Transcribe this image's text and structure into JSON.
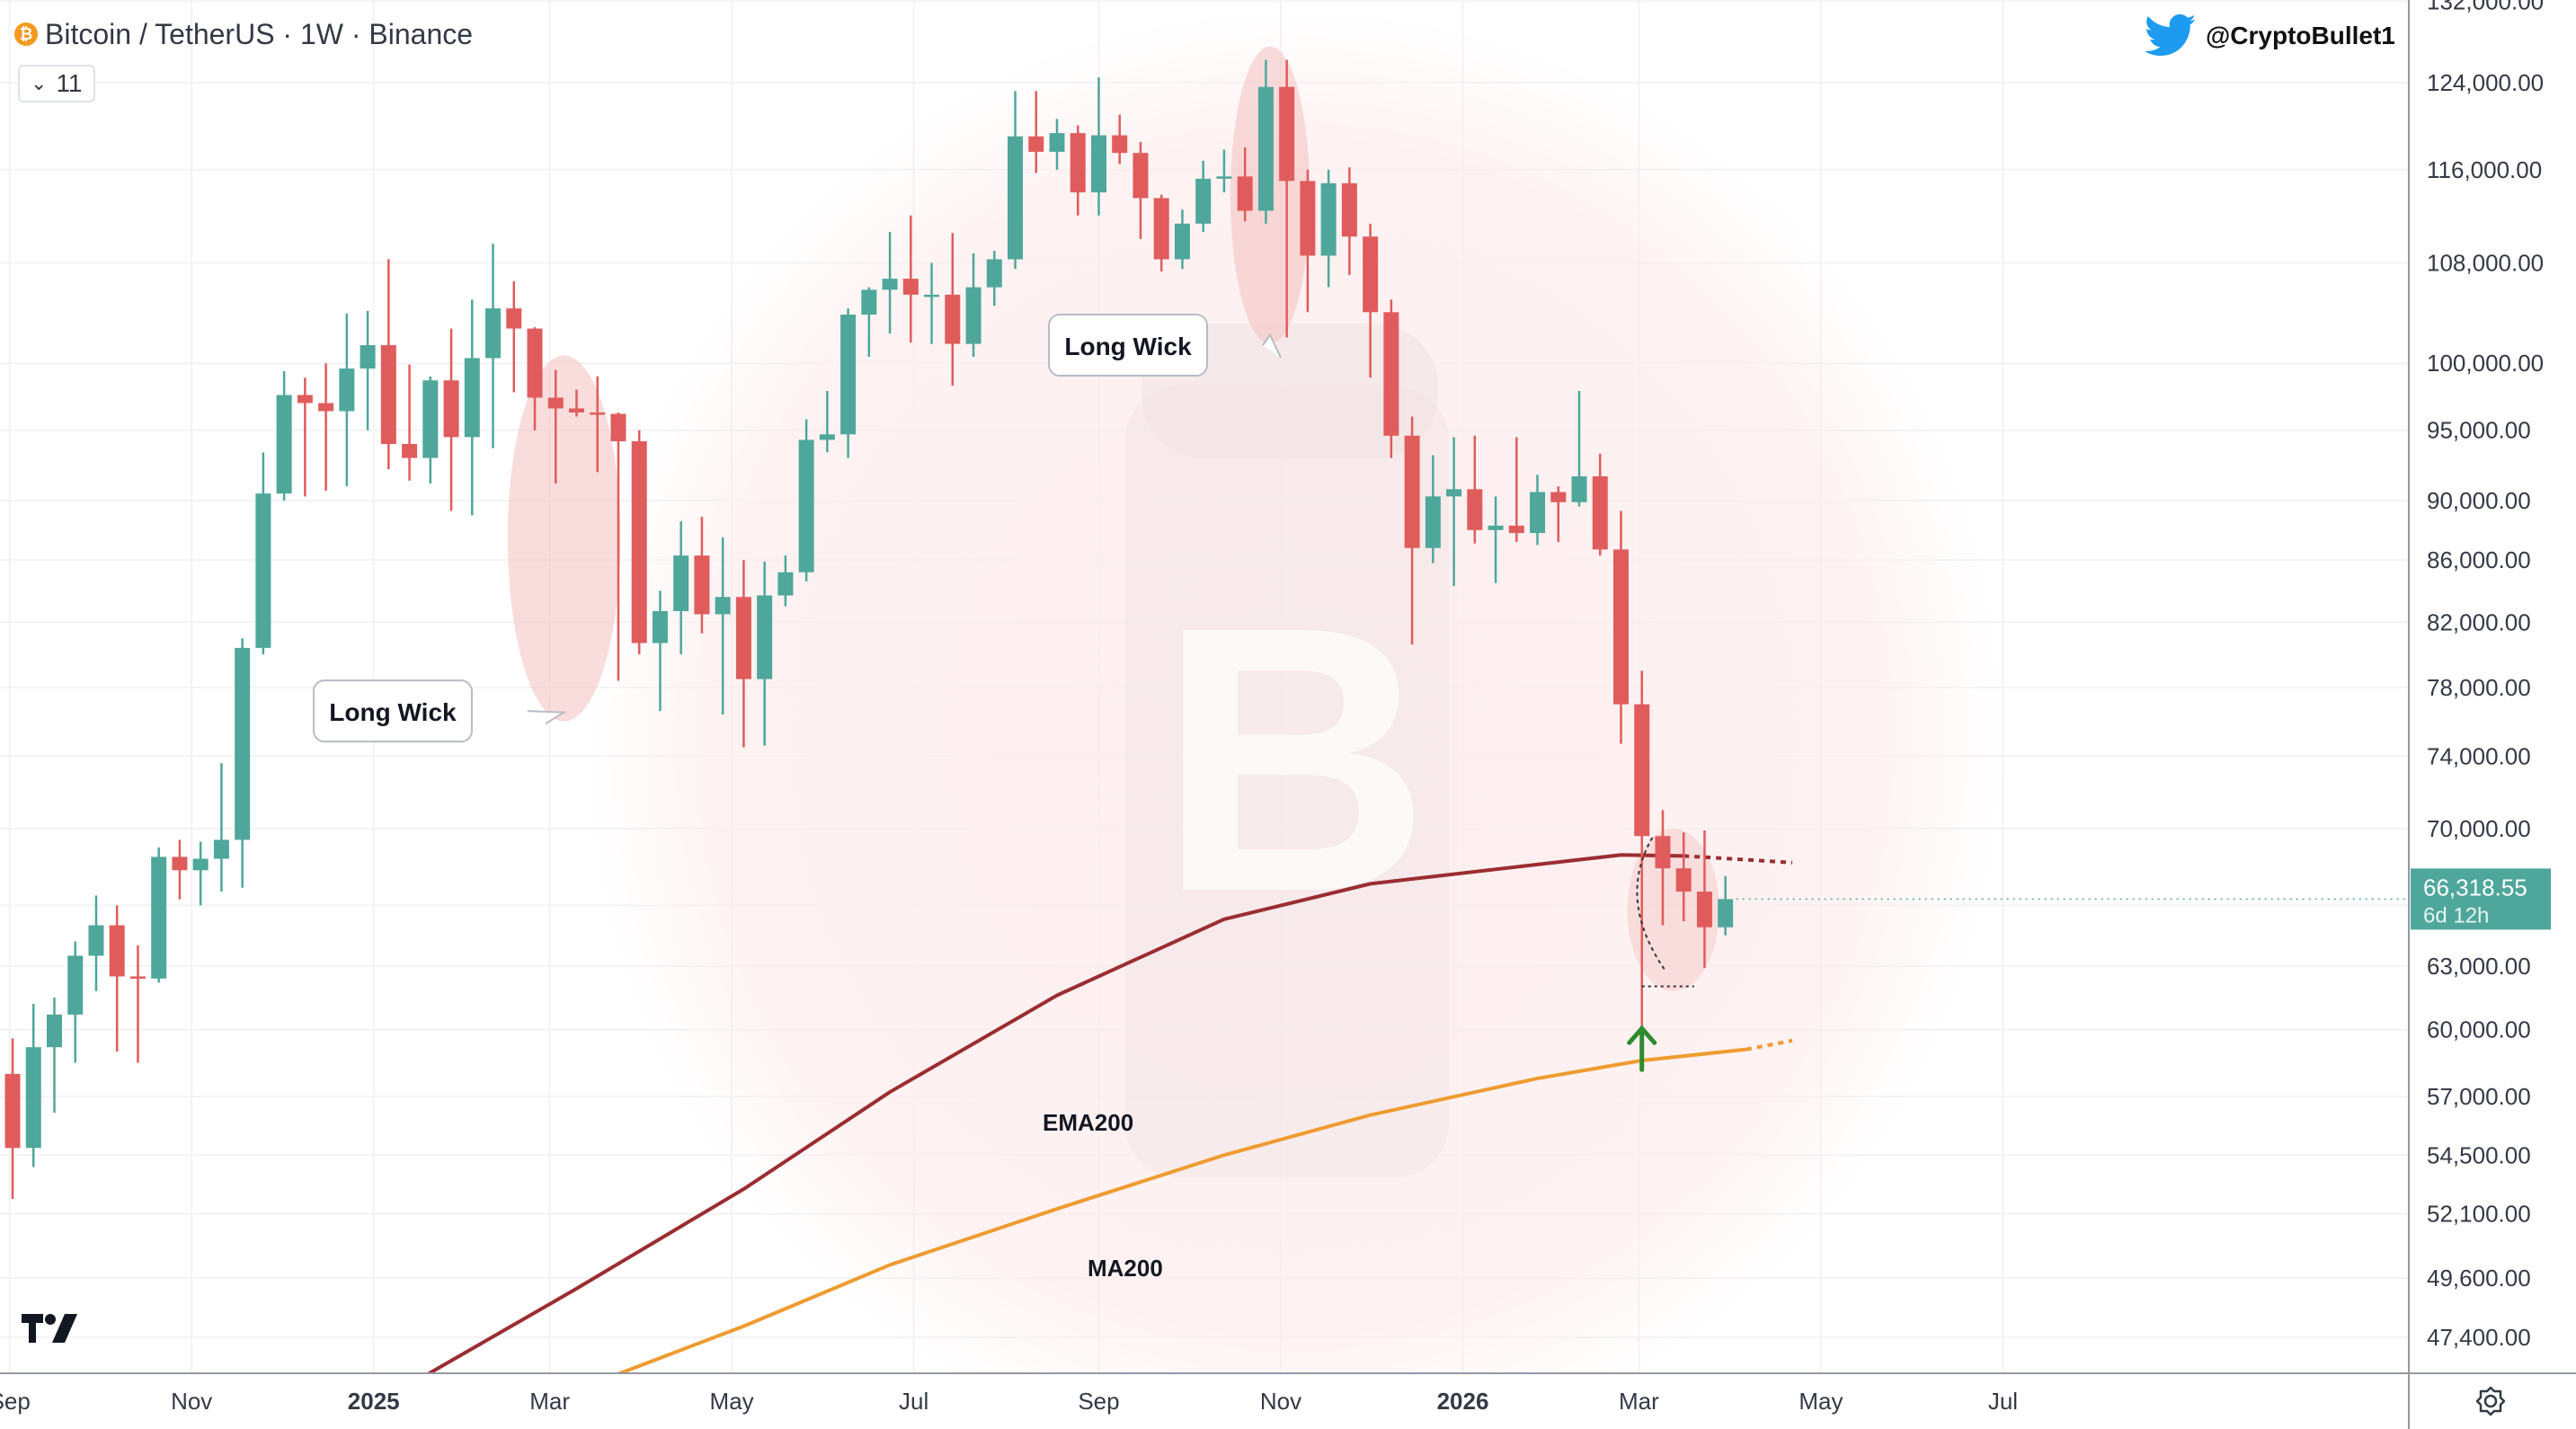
{
  "header": {
    "title": "Bitcoin / TetherUS · 1W · Binance",
    "indicator_count": "11",
    "coin_glyph": "₿"
  },
  "watermark": {
    "handle": "@CryptoBullet1",
    "icon": "twitter-bird-icon"
  },
  "price_tag": {
    "price": "66,318.55",
    "countdown": "6d 12h",
    "color": "#4ea79a"
  },
  "colors": {
    "up": "#4ea79a",
    "down": "#e05c5c",
    "ema200": "#9b2d31",
    "ma200": "#ee9b30",
    "highlight": "#f5c4c4",
    "glow": "#fdeeee",
    "arrow": "#2e8b2e"
  },
  "chart_data": {
    "type": "candlestick",
    "symbol": "Bitcoin / TetherUS",
    "interval": "1W",
    "exchange": "Binance",
    "x_start": "2024-09-02",
    "y_scale": "log",
    "ylim": [
      46000,
      132000
    ],
    "y_ticks": [
      47400,
      49600,
      52100,
      54500,
      57000,
      60000,
      63000,
      66000,
      70000,
      74000,
      78000,
      82000,
      86000,
      90000,
      95000,
      100000,
      108000,
      116000,
      124000,
      132000
    ],
    "y_tick_labels": [
      "47,400.00",
      "49,600.00",
      "52,100.00",
      "54,500.00",
      "57,000.00",
      "60,000.00",
      "63,000.00",
      "",
      "70,000.00",
      "74,000.00",
      "78,000.00",
      "82,000.00",
      "86,000.00",
      "90,000.00",
      "95,000.00",
      "100,000.00",
      "108,000.00",
      "116,000.00",
      "124,000.00",
      "132,000.00"
    ],
    "x_ticks": [
      {
        "label": "Sep",
        "date": "2024-09-01",
        "bold": false
      },
      {
        "label": "Nov",
        "date": "2024-11-01",
        "bold": false
      },
      {
        "label": "2025",
        "date": "2025-01-01",
        "bold": true
      },
      {
        "label": "Mar",
        "date": "2025-03-01",
        "bold": false
      },
      {
        "label": "May",
        "date": "2025-05-01",
        "bold": false
      },
      {
        "label": "Jul",
        "date": "2025-07-01",
        "bold": false
      },
      {
        "label": "Sep",
        "date": "2025-09-01",
        "bold": false
      },
      {
        "label": "Nov",
        "date": "2025-11-01",
        "bold": false
      },
      {
        "label": "2026",
        "date": "2026-01-01",
        "bold": true
      },
      {
        "label": "Mar",
        "date": "2026-03-01",
        "bold": false
      },
      {
        "label": "May",
        "date": "2026-05-01",
        "bold": false
      },
      {
        "label": "Jul",
        "date": "2026-07-01",
        "bold": false
      }
    ],
    "columns": [
      "open",
      "high",
      "low",
      "close"
    ],
    "candles": [
      [
        58000,
        59600,
        52700,
        54800
      ],
      [
        54800,
        61200,
        54000,
        59200
      ],
      [
        59200,
        61500,
        56300,
        60700
      ],
      [
        60700,
        64200,
        58500,
        63500
      ],
      [
        63500,
        66500,
        61800,
        65000
      ],
      [
        65000,
        66000,
        59000,
        62500
      ],
      [
        62500,
        64000,
        58500,
        62400
      ],
      [
        62400,
        69000,
        62200,
        68500
      ],
      [
        68500,
        69400,
        66300,
        67800
      ],
      [
        67800,
        69300,
        66000,
        68400
      ],
      [
        68400,
        73600,
        66700,
        69400
      ],
      [
        69400,
        81000,
        66900,
        80400
      ],
      [
        80400,
        93400,
        80000,
        90500
      ],
      [
        90500,
        99400,
        90000,
        97600
      ],
      [
        97600,
        98900,
        90300,
        97000
      ],
      [
        97000,
        100000,
        90700,
        96400
      ],
      [
        96400,
        103900,
        91000,
        99600
      ],
      [
        99600,
        104100,
        95000,
        101400
      ],
      [
        101400,
        108300,
        92200,
        94000
      ],
      [
        94000,
        99900,
        91400,
        93000
      ],
      [
        93000,
        99000,
        91200,
        98700
      ],
      [
        98700,
        102700,
        89300,
        94500
      ],
      [
        94500,
        105000,
        89000,
        100400
      ],
      [
        100400,
        109600,
        93700,
        104300
      ],
      [
        104300,
        106500,
        97800,
        102700
      ],
      [
        102700,
        102800,
        95000,
        97400
      ],
      [
        97400,
        99500,
        91200,
        96600
      ],
      [
        96600,
        98000,
        96000,
        96300
      ],
      [
        96300,
        99000,
        92000,
        96200
      ],
      [
        96200,
        96300,
        78400,
        94200
      ],
      [
        94200,
        95000,
        80000,
        80700
      ],
      [
        80700,
        84000,
        76600,
        82700
      ],
      [
        82700,
        88600,
        80000,
        86300
      ],
      [
        86300,
        88900,
        81300,
        82500
      ],
      [
        82500,
        87500,
        76400,
        83600
      ],
      [
        83600,
        86000,
        74500,
        78500
      ],
      [
        78500,
        85900,
        74600,
        83700
      ],
      [
        83700,
        86300,
        83000,
        85200
      ],
      [
        85200,
        95800,
        84600,
        94300
      ],
      [
        94300,
        97900,
        93400,
        94700
      ],
      [
        94700,
        104300,
        93000,
        103800
      ],
      [
        103800,
        106000,
        100500,
        105800
      ],
      [
        105800,
        110600,
        102300,
        106700
      ],
      [
        106700,
        112000,
        101600,
        105400
      ],
      [
        105400,
        108000,
        101500,
        105400
      ],
      [
        105400,
        110500,
        98300,
        101500
      ],
      [
        101500,
        108800,
        100500,
        106000
      ],
      [
        106000,
        109000,
        104500,
        108300
      ],
      [
        108300,
        123200,
        107500,
        119000
      ],
      [
        119000,
        123200,
        115700,
        117600
      ],
      [
        117600,
        120600,
        116000,
        119300
      ],
      [
        119300,
        120000,
        112000,
        114000
      ],
      [
        114000,
        124500,
        112000,
        119100
      ],
      [
        119100,
        121000,
        116500,
        117500
      ],
      [
        117500,
        118500,
        110000,
        113500
      ],
      [
        113500,
        113800,
        107300,
        108300
      ],
      [
        108300,
        112500,
        107500,
        111300
      ],
      [
        111300,
        116800,
        110600,
        115200
      ],
      [
        115200,
        117800,
        114000,
        115400
      ],
      [
        115400,
        118000,
        111500,
        112400
      ],
      [
        112400,
        126200,
        111300,
        123600
      ],
      [
        123600,
        126200,
        102000,
        115000
      ],
      [
        115000,
        116000,
        104000,
        108600
      ],
      [
        108600,
        116000,
        106000,
        114800
      ],
      [
        114800,
        116200,
        107000,
        110200
      ],
      [
        110200,
        111300,
        98900,
        104000
      ],
      [
        104000,
        105000,
        93000,
        94600
      ],
      [
        94600,
        96000,
        80600,
        86800
      ],
      [
        86800,
        93200,
        85800,
        90300
      ],
      [
        90300,
        94500,
        84300,
        90800
      ],
      [
        90800,
        94600,
        87100,
        88000
      ],
      [
        88000,
        90300,
        84500,
        88300
      ],
      [
        88300,
        94500,
        87200,
        87800
      ],
      [
        87800,
        91800,
        87000,
        90600
      ],
      [
        90600,
        91000,
        87200,
        89900
      ],
      [
        89900,
        97900,
        89600,
        91700
      ],
      [
        91700,
        93300,
        86300,
        86700
      ],
      [
        86700,
        89300,
        74700,
        77000
      ],
      [
        77000,
        79000,
        60000,
        69600
      ],
      [
        69600,
        71000,
        65000,
        67900
      ],
      [
        67900,
        69800,
        65200,
        66700
      ],
      [
        66700,
        69900,
        62900,
        64900
      ],
      [
        64900,
        67500,
        64500,
        66318.55
      ]
    ],
    "ema200": {
      "label": "EMA200",
      "x_weeks": [
        19.7,
        27,
        35,
        42,
        50,
        58,
        65,
        73,
        77,
        80
      ],
      "values": [
        46000,
        49200,
        53100,
        57200,
        61600,
        65300,
        67100,
        68100,
        68600,
        68550
      ],
      "projection_x_weeks": [
        80,
        85.2
      ],
      "projection_values": [
        68550,
        68200
      ]
    },
    "ma200": {
      "label": "MA200",
      "x_weeks": [
        28.7,
        35,
        42,
        50,
        58,
        65,
        73,
        78,
        83
      ],
      "values": [
        46000,
        47800,
        50100,
        52300,
        54500,
        56200,
        57800,
        58600,
        59100
      ],
      "projection_x_weeks": [
        83,
        85.2
      ],
      "projection_values": [
        59100,
        59500
      ]
    },
    "annotations": [
      {
        "type": "callout",
        "text": "Long Wick",
        "ellipse_weeks": [
          23.7,
          29.1
        ],
        "ellipse_price": [
          76000,
          100600
        ],
        "box_at_week": 18.2,
        "box_at_price": 76600
      },
      {
        "type": "callout",
        "text": "Long Wick",
        "ellipse_weeks": [
          58.3,
          62.1
        ],
        "ellipse_price": [
          101500,
          127500
        ],
        "box_at_week": 53.4,
        "box_at_price": 101400
      },
      {
        "type": "highlight",
        "ellipse_weeks": [
          77.3,
          81.7
        ],
        "ellipse_price": [
          61800,
          70000
        ]
      },
      {
        "type": "arrow",
        "direction": "up",
        "week": 78,
        "price": 59400
      }
    ]
  }
}
